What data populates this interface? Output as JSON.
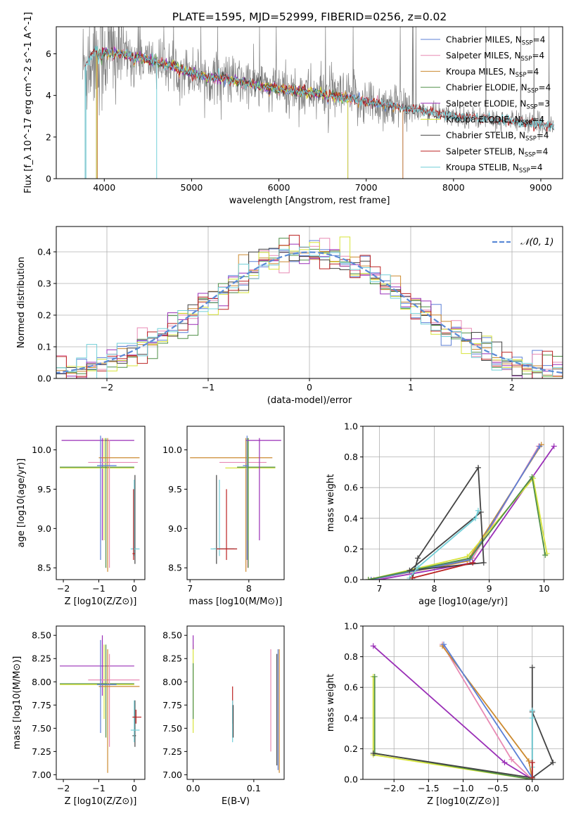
{
  "title": "PLATE=1595, MJD=52999, FIBERID=0256, z=0.02",
  "colors": {
    "Chabrier MILES": "#5b7fd6",
    "Salpeter MILES": "#e88ab4",
    "Kroupa MILES": "#cc8a30",
    "Chabrier ELODIE": "#4f8f47",
    "Salpeter ELODIE": "#9a2fb7",
    "Kroupa ELODIE": "#d7e33a",
    "Chabrier STELIB": "#444444",
    "Salpeter STELIB": "#bb2222",
    "Kroupa STELIB": "#72cfd8",
    "data": "#808080",
    "normal": "#5b8ad6",
    "orange_line": "#e07a3a",
    "lime": "#b8e640"
  },
  "chart_data": [
    {
      "type": "line",
      "panel": "spectrum",
      "xlabel": "wavelength [Angstrom, rest frame]",
      "ylabel": "Flux [f_λ 10^-17 erg cm^-2 s^-1 A^-1]",
      "xlim": [
        3450,
        9250
      ],
      "ylim": [
        0,
        7.3
      ],
      "xticks": [
        "4000",
        "5000",
        "6000",
        "7000",
        "8000",
        "9000"
      ],
      "yticks": [
        "0",
        "2",
        "4",
        "6"
      ],
      "legend": [
        "Chabrier MILES, N_SSP=4",
        "Salpeter MILES, N_SSP=4",
        "Kroupa MILES, N_SSP=4",
        "Chabrier ELODIE, N_SSP=4",
        "Salpeter ELODIE, N_SSP=3",
        "Kroupa ELODIE, N_SSP=4",
        "Chabrier STELIB, N_SSP=4",
        "Salpeter STELIB, N_SSP=4",
        "Kroupa STELIB, N_SSP=4"
      ],
      "legend_placement": "upper right",
      "continuum": {
        "x": [
          3750,
          3900,
          4000,
          4200,
          4400,
          4600,
          4800,
          5000,
          5200,
          5400,
          5600,
          5800,
          6000,
          6200,
          6400,
          6600,
          6800,
          7000,
          7200,
          7400,
          7600,
          7800,
          8000,
          8200,
          8400,
          8600,
          8800,
          9000,
          9200
        ],
        "y": [
          5.2,
          6.2,
          6.1,
          6.0,
          5.8,
          5.6,
          5.4,
          5.1,
          4.9,
          4.8,
          4.6,
          4.45,
          4.3,
          4.2,
          4.1,
          4.0,
          3.85,
          3.7,
          3.55,
          3.4,
          3.3,
          3.15,
          3.0,
          2.95,
          2.85,
          2.8,
          2.7,
          2.6,
          2.5
        ]
      }
    },
    {
      "type": "step",
      "panel": "residuals",
      "xlabel": "(data-model)/error",
      "ylabel": "Normed distribution",
      "xlim": [
        -2.5,
        2.5
      ],
      "ylim": [
        0,
        0.48
      ],
      "xticks": [
        "−2",
        "−1",
        "0",
        "1",
        "2"
      ],
      "yticks": [
        "0.0",
        "0.1",
        "0.2",
        "0.3",
        "0.4"
      ],
      "legend": [
        "N(0, 1)"
      ],
      "legend_placement": "upper right"
    },
    {
      "type": "scatter",
      "panel": "age_vs_Z",
      "xlabel": "Z [log10(Z/Z⊙)]",
      "ylabel": "age [log10(age/yr)]",
      "xlim": [
        -2.2,
        0.3
      ],
      "ylim": [
        8.35,
        10.3
      ],
      "xticks": [
        "−2",
        "−1",
        "0"
      ],
      "yticks": [
        "8.5",
        "9.0",
        "9.5",
        "10.0"
      ]
    },
    {
      "type": "scatter",
      "panel": "age_vs_mass",
      "xlabel": "mass [log10(M/M⊙)]",
      "ylabel": "",
      "xlim": [
        6.95,
        8.6
      ],
      "ylim": [
        8.35,
        10.3
      ],
      "xticks": [
        "7",
        "8"
      ],
      "yticks": [
        "8.5",
        "9.0",
        "9.5",
        "10.0"
      ]
    },
    {
      "type": "line",
      "panel": "weight_vs_age",
      "xlabel": "age [log10(age/yr)]",
      "ylabel": "mass weight",
      "xlim": [
        6.7,
        10.35
      ],
      "ylim": [
        0,
        1
      ],
      "xticks": [
        "7",
        "8",
        "9",
        "10"
      ],
      "yticks": [
        "0.0",
        "0.2",
        "0.4",
        "0.6",
        "0.8",
        "1.0"
      ]
    },
    {
      "type": "scatter",
      "panel": "mass_vs_Z",
      "xlabel": "Z [log10(Z/Z⊙)]",
      "ylabel": "mass [log10(M/M⊙)]",
      "xlim": [
        -2.2,
        0.3
      ],
      "ylim": [
        6.95,
        8.6
      ],
      "xticks": [
        "−2",
        "−1",
        "0"
      ],
      "yticks": [
        "7.00",
        "7.25",
        "7.50",
        "7.75",
        "8.00",
        "8.25",
        "8.50"
      ]
    },
    {
      "type": "scatter",
      "panel": "mass_vs_ebv",
      "xlabel": "E(B-V)",
      "ylabel": "",
      "xlim": [
        -0.01,
        0.15
      ],
      "ylim": [
        6.95,
        8.6
      ],
      "xticks": [
        "0.0",
        "0.1"
      ],
      "yticks": [
        "7.00",
        "7.25",
        "7.50",
        "7.75",
        "8.00",
        "8.25",
        "8.50"
      ]
    },
    {
      "type": "line",
      "panel": "weight_vs_Z",
      "xlabel": "Z [log10(Z/Z⊙)]",
      "ylabel": "mass weight",
      "xlim": [
        -2.45,
        0.45
      ],
      "ylim": [
        0,
        1
      ],
      "xticks": [
        "−2.0",
        "−1.5",
        "−1.0",
        "−0.5",
        "0.0"
      ],
      "yticks": [
        "0.0",
        "0.2",
        "0.4",
        "0.6",
        "0.8",
        "1.0"
      ]
    }
  ]
}
